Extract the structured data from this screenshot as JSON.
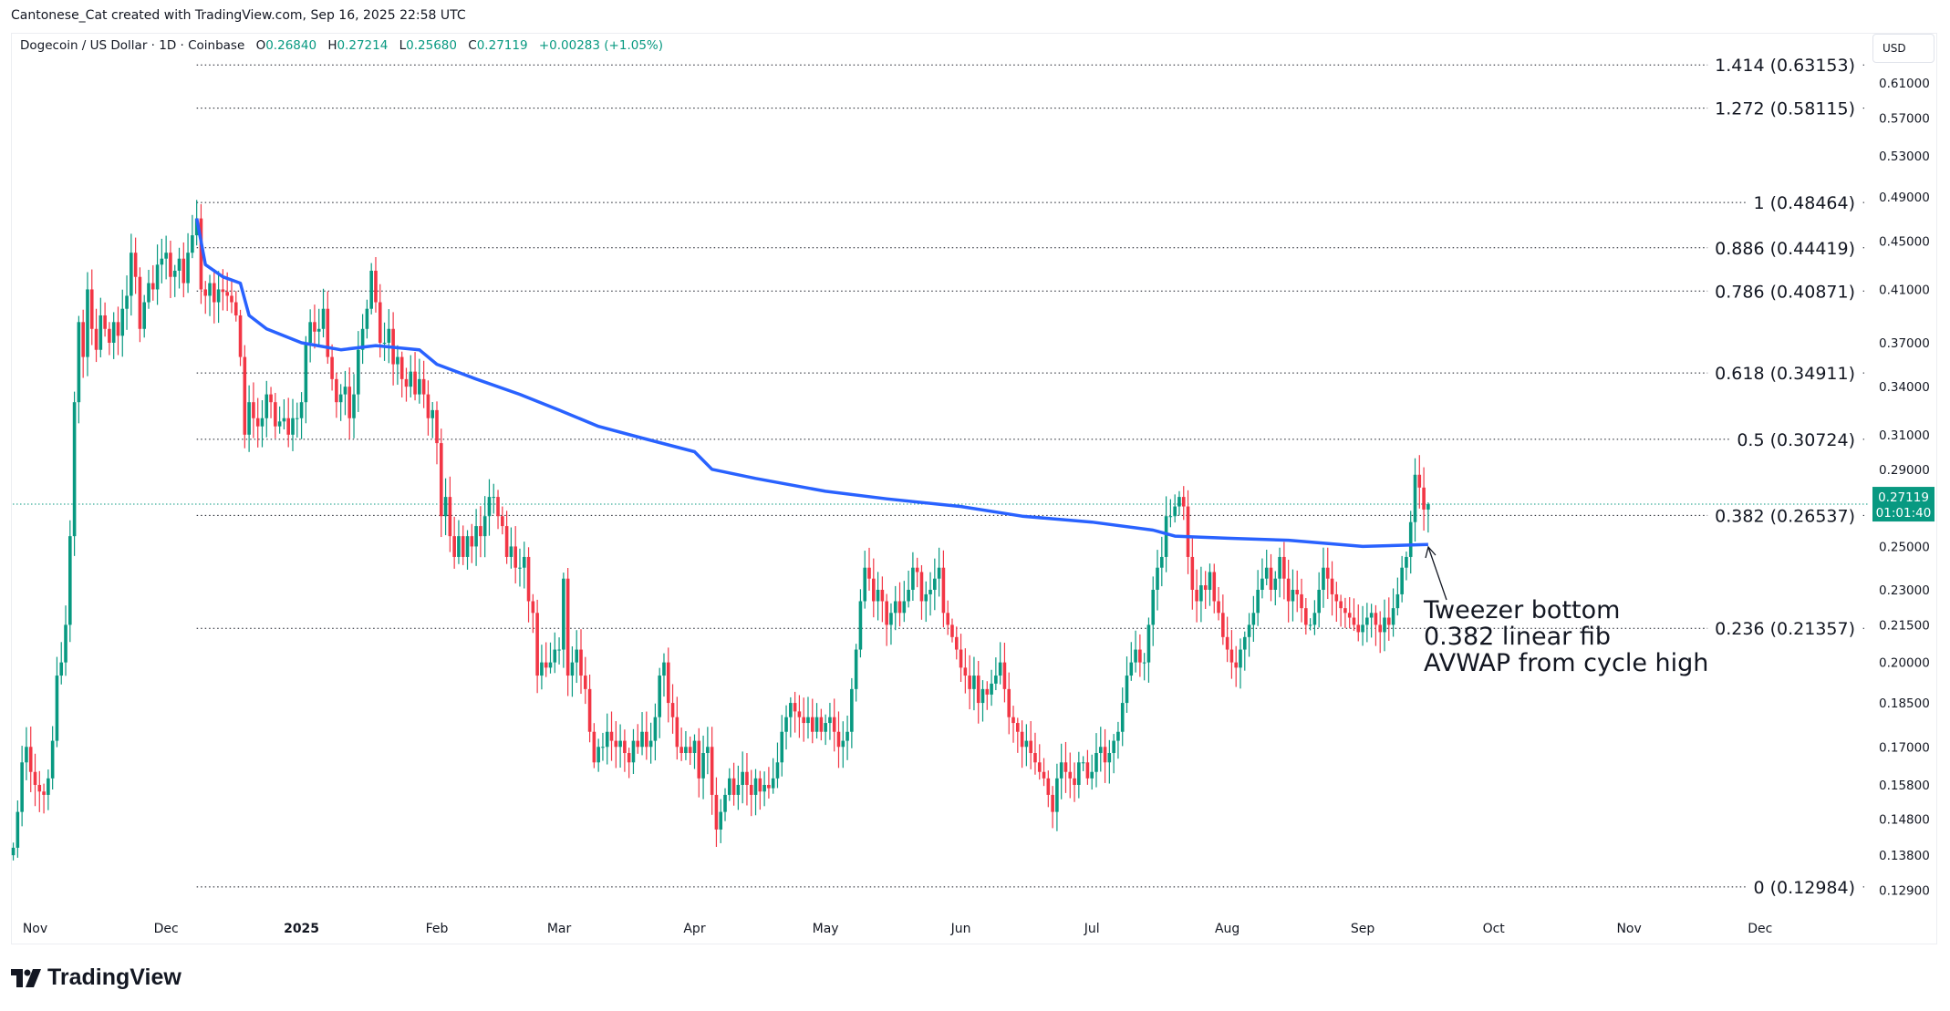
{
  "credit": "Cantonese_Cat created with TradingView.com, Sep 16, 2025 22:58 UTC",
  "legend": {
    "symbol": "Dogecoin / US Dollar · 1D · Coinbase",
    "o_label": "O",
    "o": "0.26840",
    "h_label": "H",
    "h": "0.27214",
    "l_label": "L",
    "l": "0.25680",
    "c_label": "C",
    "c": "0.27119",
    "change": "+0.00283 (+1.05%)"
  },
  "currency_button": "USD",
  "last_price": {
    "value": "0.27119",
    "countdown": "01:01:40"
  },
  "brand": "TradingView",
  "colors": {
    "up": "#089981",
    "down": "#f23645",
    "avwap": "#2962ff",
    "fib": "#131722",
    "grid_text": "#131722"
  },
  "annotation": {
    "lines": [
      "Tweezer bottom",
      "0.382 linear fib",
      "AVWAP from cycle high"
    ]
  },
  "chart_data": {
    "type": "candlestick",
    "scale": "log",
    "ylim": [
      0.125,
      0.66
    ],
    "grid": false,
    "start_date": "2024-10-27",
    "interval": "1D",
    "closes": [
      0.14,
      0.15,
      0.165,
      0.17,
      0.162,
      0.158,
      0.156,
      0.155,
      0.16,
      0.172,
      0.195,
      0.2,
      0.215,
      0.255,
      0.33,
      0.385,
      0.36,
      0.41,
      0.38,
      0.365,
      0.39,
      0.38,
      0.37,
      0.385,
      0.375,
      0.395,
      0.405,
      0.44,
      0.42,
      0.38,
      0.4,
      0.415,
      0.41,
      0.43,
      0.435,
      0.44,
      0.42,
      0.425,
      0.435,
      0.415,
      0.44,
      0.455,
      0.47,
      0.41,
      0.405,
      0.415,
      0.4,
      0.41,
      0.408,
      0.405,
      0.4,
      0.39,
      0.36,
      0.31,
      0.33,
      0.32,
      0.315,
      0.32,
      0.335,
      0.33,
      0.315,
      0.318,
      0.32,
      0.31,
      0.32,
      0.32,
      0.33,
      0.37,
      0.385,
      0.378,
      0.38,
      0.395,
      0.36,
      0.345,
      0.33,
      0.335,
      0.34,
      0.32,
      0.335,
      0.365,
      0.38,
      0.395,
      0.425,
      0.4,
      0.37,
      0.37,
      0.38,
      0.355,
      0.36,
      0.345,
      0.34,
      0.35,
      0.335,
      0.345,
      0.335,
      0.32,
      0.325,
      0.305,
      0.265,
      0.275,
      0.255,
      0.245,
      0.255,
      0.245,
      0.255,
      0.25,
      0.26,
      0.255,
      0.265,
      0.275,
      0.275,
      0.265,
      0.26,
      0.245,
      0.25,
      0.24,
      0.24,
      0.245,
      0.225,
      0.22,
      0.195,
      0.2,
      0.198,
      0.2,
      0.205,
      0.205,
      0.235,
      0.195,
      0.2,
      0.205,
      0.195,
      0.19,
      0.175,
      0.165,
      0.17,
      0.17,
      0.175,
      0.172,
      0.17,
      0.172,
      0.168,
      0.165,
      0.172,
      0.17,
      0.175,
      0.17,
      0.172,
      0.18,
      0.195,
      0.2,
      0.185,
      0.18,
      0.17,
      0.168,
      0.17,
      0.168,
      0.172,
      0.16,
      0.168,
      0.17,
      0.155,
      0.145,
      0.15,
      0.155,
      0.16,
      0.155,
      0.158,
      0.162,
      0.158,
      0.155,
      0.16,
      0.156,
      0.158,
      0.157,
      0.16,
      0.165,
      0.175,
      0.18,
      0.185,
      0.182,
      0.18,
      0.178,
      0.18,
      0.175,
      0.18,
      0.175,
      0.178,
      0.18,
      0.175,
      0.17,
      0.172,
      0.175,
      0.19,
      0.205,
      0.225,
      0.24,
      0.235,
      0.225,
      0.23,
      0.225,
      0.215,
      0.22,
      0.225,
      0.22,
      0.225,
      0.23,
      0.24,
      0.238,
      0.225,
      0.228,
      0.23,
      0.235,
      0.24,
      0.22,
      0.215,
      0.21,
      0.205,
      0.198,
      0.195,
      0.19,
      0.195,
      0.185,
      0.19,
      0.188,
      0.192,
      0.195,
      0.2,
      0.19,
      0.18,
      0.178,
      0.175,
      0.17,
      0.172,
      0.168,
      0.165,
      0.162,
      0.16,
      0.155,
      0.15,
      0.16,
      0.165,
      0.162,
      0.16,
      0.158,
      0.165,
      0.165,
      0.16,
      0.162,
      0.168,
      0.17,
      0.165,
      0.168,
      0.172,
      0.175,
      0.185,
      0.195,
      0.2,
      0.205,
      0.2,
      0.2,
      0.215,
      0.23,
      0.24,
      0.245,
      0.265,
      0.265,
      0.27,
      0.275,
      0.27,
      0.245,
      0.23,
      0.225,
      0.232,
      0.23,
      0.238,
      0.225,
      0.22,
      0.21,
      0.205,
      0.2,
      0.198,
      0.205,
      0.21,
      0.215,
      0.22,
      0.23,
      0.235,
      0.24,
      0.23,
      0.235,
      0.245,
      0.235,
      0.225,
      0.23,
      0.228,
      0.222,
      0.215,
      0.215,
      0.22,
      0.23,
      0.24,
      0.235,
      0.228,
      0.225,
      0.222,
      0.22,
      0.218,
      0.215,
      0.212,
      0.215,
      0.218,
      0.22,
      0.215,
      0.212,
      0.218,
      0.215,
      0.222,
      0.228,
      0.24,
      0.245,
      0.262,
      0.287,
      0.28,
      0.2684,
      0.27119
    ],
    "first_open": 0.138,
    "avwap": [
      [
        "2024-12-08",
        0.47
      ],
      [
        "2024-12-10",
        0.43
      ],
      [
        "2024-12-14",
        0.42
      ],
      [
        "2024-12-18",
        0.415
      ],
      [
        "2024-12-20",
        0.39
      ],
      [
        "2024-12-24",
        0.38
      ],
      [
        "2025-01-01",
        0.37
      ],
      [
        "2025-01-10",
        0.365
      ],
      [
        "2025-01-18",
        0.368
      ],
      [
        "2025-01-28",
        0.365
      ],
      [
        "2025-02-01",
        0.355
      ],
      [
        "2025-02-10",
        0.345
      ],
      [
        "2025-02-20",
        0.335
      ],
      [
        "2025-03-01",
        0.325
      ],
      [
        "2025-03-10",
        0.315
      ],
      [
        "2025-03-20",
        0.308
      ],
      [
        "2025-04-01",
        0.3
      ],
      [
        "2025-04-05",
        0.29
      ],
      [
        "2025-04-15",
        0.285
      ],
      [
        "2025-05-01",
        0.278
      ],
      [
        "2025-05-15",
        0.274
      ],
      [
        "2025-06-01",
        0.27
      ],
      [
        "2025-06-15",
        0.265
      ],
      [
        "2025-07-01",
        0.262
      ],
      [
        "2025-07-15",
        0.258
      ],
      [
        "2025-07-20",
        0.255
      ],
      [
        "2025-08-01",
        0.254
      ],
      [
        "2025-08-15",
        0.253
      ],
      [
        "2025-09-01",
        0.25
      ],
      [
        "2025-09-16",
        0.251
      ]
    ],
    "fib_start_date": "2024-12-08",
    "fib_levels": [
      {
        "label": "1.414 (0.63153)",
        "price": 0.63153
      },
      {
        "label": "1.272 (0.58115)",
        "price": 0.58115
      },
      {
        "label": "1 (0.48464)",
        "price": 0.48464
      },
      {
        "label": "0.886 (0.44419)",
        "price": 0.44419
      },
      {
        "label": "0.786 (0.40871)",
        "price": 0.40871
      },
      {
        "label": "0.618 (0.34911)",
        "price": 0.34911
      },
      {
        "label": "0.5 (0.30724)",
        "price": 0.30724
      },
      {
        "label": "0.382 (0.26537)",
        "price": 0.26537
      },
      {
        "label": "0.236 (0.21357)",
        "price": 0.21357
      },
      {
        "label": "0 (0.12984)",
        "price": 0.12984
      }
    ],
    "y_ticks": [
      "0.61000",
      "0.57000",
      "0.53000",
      "0.49000",
      "0.45000",
      "0.41000",
      "0.37000",
      "0.34000",
      "0.31000",
      "0.29000",
      "0.25000",
      "0.23000",
      "0.21500",
      "0.20000",
      "0.18500",
      "0.17000",
      "0.15800",
      "0.14800",
      "0.13800",
      "0.12900"
    ],
    "x_ticks": [
      {
        "label": "Nov",
        "date": "2024-11-01"
      },
      {
        "label": "Dec",
        "date": "2024-12-01"
      },
      {
        "label": "2025",
        "date": "2025-01-01",
        "bold": true
      },
      {
        "label": "Feb",
        "date": "2025-02-01"
      },
      {
        "label": "Mar",
        "date": "2025-03-01"
      },
      {
        "label": "Apr",
        "date": "2025-04-01"
      },
      {
        "label": "May",
        "date": "2025-05-01"
      },
      {
        "label": "Jun",
        "date": "2025-06-01"
      },
      {
        "label": "Jul",
        "date": "2025-07-01"
      },
      {
        "label": "Aug",
        "date": "2025-08-01"
      },
      {
        "label": "Sep",
        "date": "2025-09-01"
      },
      {
        "label": "Oct",
        "date": "2025-10-01"
      },
      {
        "label": "Nov",
        "date": "2025-11-01"
      },
      {
        "label": "Dec",
        "date": "2025-12-01"
      }
    ],
    "last_price": 0.27119
  }
}
